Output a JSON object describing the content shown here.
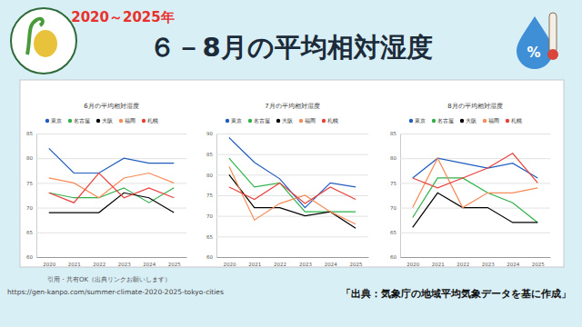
{
  "header": {
    "years": "2020～2025年",
    "title": "６－8月の平均相対湿度",
    "icon_text": "%"
  },
  "chart_data": [
    {
      "type": "line",
      "title": "6月の平均相対湿度",
      "categories": [
        "2020",
        "2021",
        "2022",
        "2023",
        "2024",
        "2025"
      ],
      "series": [
        {
          "name": "東京",
          "color": "#1f5cbf",
          "values": [
            82,
            77,
            77,
            80,
            79,
            79
          ]
        },
        {
          "name": "名古屋",
          "color": "#2fb14a",
          "values": [
            73,
            72,
            72,
            74,
            71,
            74
          ]
        },
        {
          "name": "大阪",
          "color": "#000000",
          "values": [
            69,
            69,
            69,
            73,
            72,
            69
          ]
        },
        {
          "name": "福岡",
          "color": "#f58b57",
          "values": [
            76,
            75,
            72,
            76,
            77,
            75
          ]
        },
        {
          "name": "札幌",
          "color": "#e8413c",
          "values": [
            73,
            71,
            77,
            72,
            74,
            72
          ]
        }
      ],
      "ylim": [
        60,
        85
      ],
      "yticks": [
        60,
        65,
        70,
        75,
        80,
        85
      ],
      "grid": true,
      "legend": "top"
    },
    {
      "type": "line",
      "title": "7月の平均相対湿度",
      "categories": [
        "2020",
        "2021",
        "2022",
        "2023",
        "2024",
        "2025"
      ],
      "series": [
        {
          "name": "東京",
          "color": "#1f5cbf",
          "values": [
            89,
            83,
            79,
            72,
            78,
            77
          ]
        },
        {
          "name": "名古屋",
          "color": "#2fb14a",
          "values": [
            84,
            77,
            78,
            71,
            71,
            71
          ]
        },
        {
          "name": "大阪",
          "color": "#000000",
          "values": [
            80,
            72,
            72,
            70,
            71,
            67
          ]
        },
        {
          "name": "福岡",
          "color": "#f58b57",
          "values": [
            82,
            69,
            73,
            75,
            71,
            68
          ]
        },
        {
          "name": "札幌",
          "color": "#e8413c",
          "values": [
            77,
            74,
            78,
            73,
            77,
            74
          ]
        }
      ],
      "ylim": [
        60,
        90
      ],
      "yticks": [
        60,
        65,
        70,
        75,
        80,
        85,
        90
      ],
      "grid": true,
      "legend": "top"
    },
    {
      "type": "line",
      "title": "8月の平均相対湿度",
      "categories": [
        "2020",
        "2021",
        "2022",
        "2023",
        "2024",
        "2025"
      ],
      "series": [
        {
          "name": "東京",
          "color": "#1f5cbf",
          "values": [
            76,
            80,
            79,
            78,
            79,
            76
          ]
        },
        {
          "name": "名古屋",
          "color": "#2fb14a",
          "values": [
            68,
            76,
            76,
            73,
            71,
            67
          ]
        },
        {
          "name": "大阪",
          "color": "#000000",
          "values": [
            66,
            73,
            70,
            70,
            67,
            67
          ]
        },
        {
          "name": "福岡",
          "color": "#f58b57",
          "values": [
            70,
            80,
            70,
            73,
            73,
            74
          ]
        },
        {
          "name": "札幌",
          "color": "#e8413c",
          "values": [
            76,
            74,
            76,
            78,
            81,
            75
          ]
        }
      ],
      "ylim": [
        60,
        85
      ],
      "yticks": [
        60,
        65,
        70,
        75,
        80,
        85
      ],
      "grid": true,
      "legend": "top"
    }
  ],
  "footer": {
    "note": "引用・共有OK（出典リンクお願いします）",
    "url": "https://gen-kanpo.com/summer-climate-2020-2025-tokyo-cities",
    "source": "「出典：気象庁の地域平均気象データを基に作成」"
  }
}
